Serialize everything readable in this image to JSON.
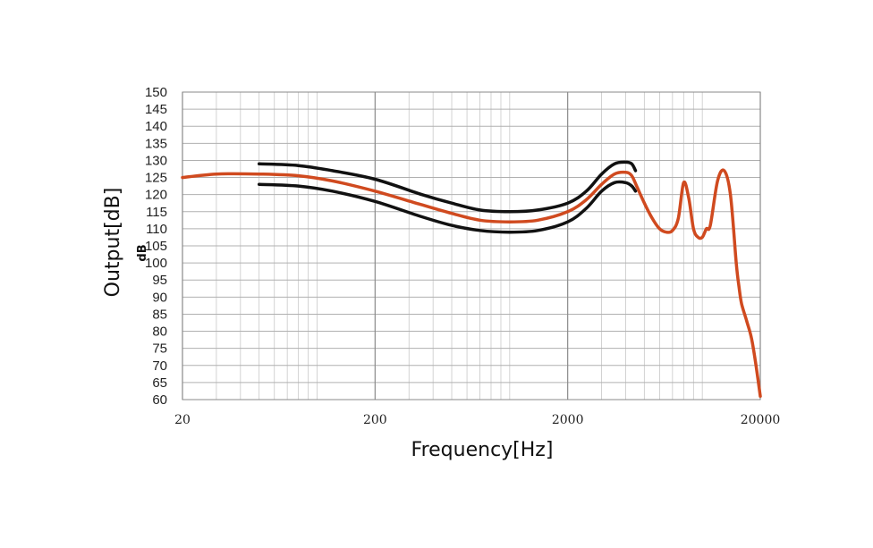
{
  "chart_data": {
    "type": "line",
    "xlabel": "Frequency[Hz]",
    "ylabel": "Output[dB]",
    "yunit": "dB",
    "x_scale": "log",
    "xlim": [
      20,
      20000
    ],
    "ylim": [
      60,
      150
    ],
    "xticks": [
      20,
      200,
      2000,
      20000
    ],
    "xtick_labels": [
      "20",
      "200",
      "2000",
      "20000"
    ],
    "yticks": [
      60,
      65,
      70,
      75,
      80,
      85,
      90,
      95,
      100,
      105,
      110,
      115,
      120,
      125,
      130,
      135,
      140,
      145,
      150
    ],
    "grid": true,
    "colors": {
      "response": "#d04a1f",
      "limits": "#111111",
      "grid": "#b0b0b0"
    },
    "series": [
      {
        "color": "#111111",
        "x": [
          50,
          80,
          120,
          200,
          350,
          500,
          700,
          1000,
          1400,
          2000,
          2500,
          3000,
          3500,
          4000,
          4300,
          4500
        ],
        "y": [
          129,
          128.5,
          127,
          124.5,
          120,
          117.5,
          115.5,
          115,
          115.5,
          117.5,
          121,
          126,
          129,
          129.5,
          129,
          127
        ]
      },
      {
        "color": "#d04a1f",
        "x": [
          20,
          30,
          50,
          80,
          120,
          200,
          350,
          500,
          700,
          1000,
          1400,
          2000,
          2500,
          3000,
          3500,
          4000,
          4300,
          4600,
          5000,
          5500,
          6000,
          6500,
          7000,
          7500,
          8000,
          8500,
          9000,
          9500,
          10000,
          10500,
          11000,
          12000,
          13000,
          14000,
          15000,
          15500,
          16000,
          17000,
          18000,
          19000,
          20000
        ],
        "y": [
          125,
          126,
          126,
          125.5,
          124,
          121,
          117,
          114.5,
          112.5,
          112,
          112.5,
          115,
          118.5,
          123,
          126,
          126.5,
          125.5,
          122,
          117.5,
          113,
          110,
          109,
          109.5,
          113,
          123.5,
          119,
          110,
          107.5,
          107.5,
          110,
          111,
          124,
          127,
          120,
          100,
          93,
          88,
          83,
          78,
          70,
          61
        ]
      },
      {
        "color": "#111111",
        "x": [
          50,
          80,
          120,
          200,
          350,
          500,
          700,
          1000,
          1400,
          2000,
          2500,
          3000,
          3500,
          4000,
          4300,
          4500
        ],
        "y": [
          123,
          122.5,
          121,
          118,
          113.5,
          111,
          109.5,
          109,
          109.5,
          112,
          116,
          121,
          123.5,
          123.5,
          122.5,
          121
        ]
      }
    ]
  }
}
